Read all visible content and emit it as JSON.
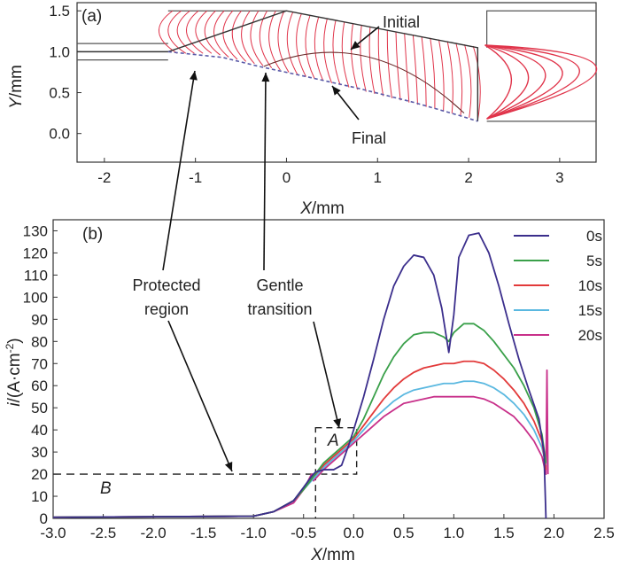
{
  "chart_data": [
    {
      "type": "line",
      "panel_label": "(a)",
      "xlabel": "X",
      "xunit": "/mm",
      "ylabel": "Y",
      "yunit": "/mm",
      "xlim": [
        -2.3,
        3.4
      ],
      "ylim": [
        -0.35,
        1.6
      ],
      "xticks": [
        -2,
        -1,
        0,
        1,
        2,
        3
      ],
      "yticks": [
        0.0,
        0.5,
        1.0,
        1.5
      ],
      "ytick_labels": [
        "0.0",
        "0.5",
        "1.0",
        "1.5"
      ],
      "annotations": [
        "Initial",
        "Final"
      ],
      "colors": {
        "current_lines": "#e0344a",
        "profile": "#333333",
        "final_dashed": "#5a5aa8",
        "outline": "#555555"
      },
      "series": [
        {
          "name": "Initial",
          "x": [
            -2.3,
            -1.3,
            0.0,
            2.1,
            2.1
          ],
          "y": [
            1.0,
            1.0,
            1.5,
            1.05,
            0.15
          ]
        },
        {
          "name": "Final",
          "x": [
            -1.3,
            -0.7,
            -0.3,
            0.2,
            0.8,
            1.4,
            1.9,
            2.1
          ],
          "y": [
            1.0,
            0.93,
            0.82,
            0.7,
            0.55,
            0.38,
            0.22,
            0.15
          ]
        }
      ]
    },
    {
      "type": "line",
      "panel_label": "(b)",
      "xlabel": "X",
      "xunit": "/mm",
      "ylabel": "i",
      "yunit": "/(A·cm",
      "yunit_sup": "-2",
      "yunit_end": ")",
      "xlim": [
        -3.0,
        2.5
      ],
      "ylim": [
        0,
        135
      ],
      "xticks": [
        -3.0,
        -2.5,
        -2.0,
        -1.5,
        -1.0,
        -0.5,
        0.0,
        0.5,
        1.0,
        1.5,
        2.0,
        2.5
      ],
      "xtick_labels": [
        "-3.0",
        "-2.5",
        "-2.0",
        "-1.5",
        "-1.0",
        "-0.5",
        "0.0",
        "0.5",
        "1.0",
        "1.5",
        "2.0",
        "2.5"
      ],
      "yticks": [
        0,
        10,
        20,
        30,
        40,
        50,
        60,
        70,
        80,
        90,
        100,
        110,
        120,
        130
      ],
      "legend_position": "top-right",
      "region_labels": {
        "A": "A",
        "B": "B"
      },
      "box_A": {
        "x": [
          -0.38,
          0.03
        ],
        "y": [
          20,
          41
        ]
      },
      "guide_B": {
        "y": 20,
        "x_end": -0.38
      },
      "annotations": {
        "protected_line1": "Protected",
        "protected_line2": "region",
        "gentle_line1": "Gentle",
        "gentle_line2": "transition"
      },
      "series": [
        {
          "name": "0s",
          "color": "#3b2e8c",
          "x": [
            -3.0,
            -1.0,
            -0.8,
            -0.6,
            -0.5,
            -0.42,
            -0.38,
            -0.3,
            -0.2,
            -0.12,
            -0.05,
            0.0,
            0.1,
            0.2,
            0.3,
            0.4,
            0.5,
            0.6,
            0.7,
            0.8,
            0.88,
            0.95,
            1.0,
            1.05,
            1.15,
            1.25,
            1.35,
            1.45,
            1.55,
            1.65,
            1.75,
            1.85,
            1.9,
            1.92
          ],
          "values": [
            0.5,
            1,
            3,
            8,
            14,
            19,
            21,
            22,
            22,
            24,
            33,
            40,
            55,
            72,
            90,
            105,
            114,
            119,
            118,
            110,
            95,
            75,
            92,
            118,
            128,
            129,
            120,
            105,
            88,
            72,
            58,
            45,
            30,
            0
          ]
        },
        {
          "name": "5s",
          "color": "#3aa04a",
          "x": [
            -3.0,
            -1.0,
            -0.8,
            -0.6,
            -0.5,
            -0.4,
            -0.3,
            -0.2,
            -0.1,
            0.0,
            0.1,
            0.2,
            0.3,
            0.4,
            0.5,
            0.6,
            0.7,
            0.8,
            0.9,
            0.95,
            1.0,
            1.1,
            1.2,
            1.3,
            1.4,
            1.5,
            1.6,
            1.7,
            1.8,
            1.88,
            1.92
          ],
          "values": [
            0.5,
            1,
            3,
            8,
            13,
            19,
            25,
            29,
            33,
            37,
            45,
            55,
            65,
            73,
            79,
            83,
            84,
            84,
            82,
            80,
            84,
            88,
            88,
            85,
            80,
            74,
            68,
            60,
            50,
            38,
            25
          ]
        },
        {
          "name": "10s",
          "color": "#e23a3a",
          "x": [
            -3.0,
            -1.0,
            -0.8,
            -0.6,
            -0.5,
            -0.4,
            -0.3,
            -0.2,
            -0.1,
            0.0,
            0.1,
            0.2,
            0.3,
            0.4,
            0.5,
            0.6,
            0.7,
            0.8,
            0.9,
            1.0,
            1.1,
            1.2,
            1.3,
            1.4,
            1.5,
            1.6,
            1.7,
            1.8,
            1.88,
            1.92
          ],
          "values": [
            0.5,
            1,
            3,
            8,
            13,
            19,
            24,
            28,
            32,
            36,
            42,
            48,
            54,
            59,
            63,
            66,
            68,
            69,
            70,
            70,
            71,
            71,
            70,
            67,
            63,
            58,
            52,
            44,
            35,
            22
          ]
        },
        {
          "name": "15s",
          "color": "#5ab8e0",
          "x": [
            -3.0,
            -1.0,
            -0.8,
            -0.6,
            -0.5,
            -0.4,
            -0.3,
            -0.2,
            -0.1,
            0.0,
            0.1,
            0.2,
            0.3,
            0.4,
            0.5,
            0.6,
            0.7,
            0.8,
            0.9,
            1.0,
            1.1,
            1.2,
            1.3,
            1.4,
            1.5,
            1.6,
            1.7,
            1.8,
            1.88,
            1.92
          ],
          "values": [
            0.5,
            1,
            3,
            8,
            13,
            18,
            23,
            27,
            31,
            35,
            40,
            45,
            49,
            53,
            56,
            58,
            59,
            60,
            61,
            61,
            62,
            62,
            61,
            59,
            56,
            52,
            47,
            40,
            32,
            24
          ]
        },
        {
          "name": "20s",
          "color": "#c8308a",
          "x": [
            -3.0,
            -1.0,
            -0.8,
            -0.6,
            -0.5,
            -0.42,
            -0.4,
            -0.3,
            -0.2,
            -0.1,
            0.0,
            0.1,
            0.2,
            0.3,
            0.4,
            0.5,
            0.6,
            0.7,
            0.8,
            0.9,
            1.0,
            1.1,
            1.2,
            1.3,
            1.4,
            1.5,
            1.6,
            1.7,
            1.8,
            1.88,
            1.92,
            1.93,
            1.94
          ],
          "values": [
            0.5,
            1,
            3,
            7,
            13,
            20,
            17,
            22,
            26,
            30,
            34,
            38,
            42,
            46,
            49,
            52,
            53,
            54,
            55,
            55,
            55,
            55,
            55,
            54,
            52,
            49,
            46,
            41,
            35,
            28,
            20,
            67,
            20
          ]
        }
      ]
    }
  ]
}
